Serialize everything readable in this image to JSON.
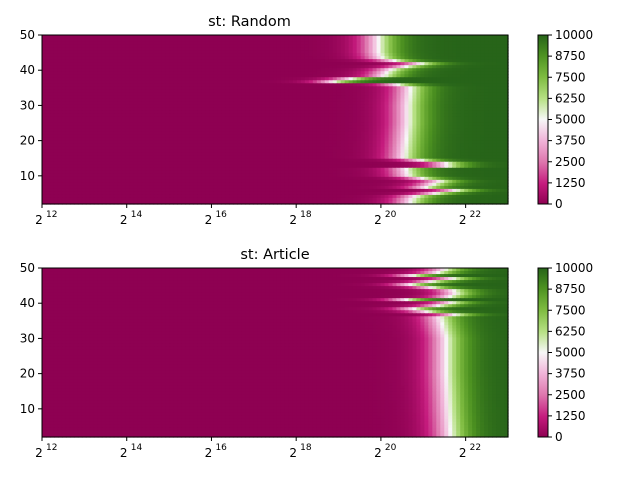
{
  "colors": {
    "min": "#8e0152",
    "mid": "#f7f7f7",
    "max": "#276419",
    "axis": "#000000",
    "background": "#ffffff"
  },
  "chart_data": [
    {
      "type": "heatmap",
      "title": "st: Random",
      "xlabel": "",
      "ylabel": "",
      "x_scale": "log2",
      "xlim": [
        4096,
        8388608
      ],
      "x_ticks": [
        {
          "base": "2",
          "exp": "12"
        },
        {
          "base": "2",
          "exp": "14"
        },
        {
          "base": "2",
          "exp": "16"
        },
        {
          "base": "2",
          "exp": "18"
        },
        {
          "base": "2",
          "exp": "20"
        },
        {
          "base": "2",
          "exp": "22"
        }
      ],
      "ylim": [
        2,
        50
      ],
      "y_ticks": [
        "10",
        "20",
        "30",
        "40",
        "50"
      ],
      "colorbar": {
        "min": 0,
        "max": 10000,
        "ticks": [
          "0",
          "1250",
          "2500",
          "3750",
          "5000",
          "6250",
          "7500",
          "8750",
          "10000"
        ]
      },
      "rows": [
        {
          "y": 2,
          "log2x_midpoint": 20.7
        },
        {
          "y": 4,
          "log2x_midpoint": 20.75
        },
        {
          "y": 6,
          "log2x_midpoint": 21.85
        },
        {
          "y": 7,
          "log2x_midpoint": 20.75
        },
        {
          "y": 8,
          "log2x_midpoint": 21.6
        },
        {
          "y": 10,
          "log2x_midpoint": 20.65
        },
        {
          "y": 12,
          "log2x_midpoint": 20.6
        },
        {
          "y": 13,
          "log2x_midpoint": 21.95
        },
        {
          "y": 15,
          "log2x_midpoint": 20.55
        },
        {
          "y": 20,
          "log2x_midpoint": 20.6
        },
        {
          "y": 25,
          "log2x_midpoint": 20.65
        },
        {
          "y": 30,
          "log2x_midpoint": 20.65
        },
        {
          "y": 35,
          "log2x_midpoint": 20.7
        },
        {
          "y": 36,
          "log2x_midpoint": 20.35
        },
        {
          "y": 37,
          "log2x_midpoint": 18.3
        },
        {
          "y": 38,
          "log2x_midpoint": 20.05
        },
        {
          "y": 40,
          "log2x_midpoint": 20.2
        },
        {
          "y": 42,
          "log2x_midpoint": 21.0
        },
        {
          "y": 43,
          "log2x_midpoint": 20.05
        },
        {
          "y": 45,
          "log2x_midpoint": 19.95
        },
        {
          "y": 50,
          "log2x_midpoint": 19.95
        }
      ]
    },
    {
      "type": "heatmap",
      "title": "st: Article",
      "xlabel": "",
      "ylabel": "",
      "x_scale": "log2",
      "xlim": [
        4096,
        8388608
      ],
      "x_ticks": [
        {
          "base": "2",
          "exp": "12"
        },
        {
          "base": "2",
          "exp": "14"
        },
        {
          "base": "2",
          "exp": "16"
        },
        {
          "base": "2",
          "exp": "18"
        },
        {
          "base": "2",
          "exp": "20"
        },
        {
          "base": "2",
          "exp": "22"
        }
      ],
      "ylim": [
        2,
        50
      ],
      "y_ticks": [
        "10",
        "20",
        "30",
        "40",
        "50"
      ],
      "colorbar": {
        "min": 0,
        "max": 10000,
        "ticks": [
          "0",
          "1250",
          "2500",
          "3750",
          "5000",
          "6250",
          "7500",
          "8750",
          "10000"
        ]
      },
      "rows": [
        {
          "y": 2,
          "log2x_midpoint": 21.65
        },
        {
          "y": 10,
          "log2x_midpoint": 21.6
        },
        {
          "y": 20,
          "log2x_midpoint": 21.55
        },
        {
          "y": 30,
          "log2x_midpoint": 21.55
        },
        {
          "y": 36,
          "log2x_midpoint": 21.4
        },
        {
          "y": 37,
          "log2x_midpoint": 21.9
        },
        {
          "y": 38,
          "log2x_midpoint": 20.5
        },
        {
          "y": 40,
          "log2x_midpoint": 21.85
        },
        {
          "y": 41,
          "log2x_midpoint": 20.6
        },
        {
          "y": 42,
          "log2x_midpoint": 21.8
        },
        {
          "y": 44,
          "log2x_midpoint": 21.7
        },
        {
          "y": 45,
          "log2x_midpoint": 20.55
        },
        {
          "y": 47,
          "log2x_midpoint": 21.7
        },
        {
          "y": 48,
          "log2x_midpoint": 20.6
        },
        {
          "y": 49,
          "log2x_midpoint": 21.65
        },
        {
          "y": 50,
          "log2x_midpoint": 21.4
        }
      ]
    }
  ]
}
